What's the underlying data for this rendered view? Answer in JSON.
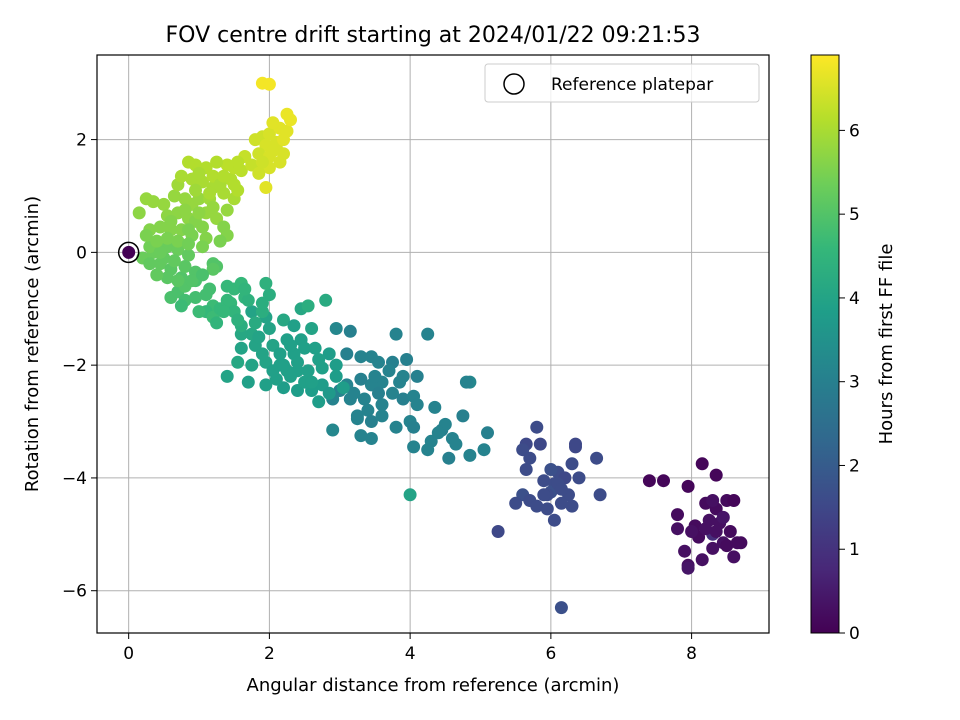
{
  "chart_data": {
    "type": "scatter",
    "title": "FOV centre drift starting at 2024/01/22 09:21:53",
    "xlabel": "Angular distance from reference (arcmin)",
    "ylabel": "Rotation from reference (arcmin)",
    "xlim": [
      -0.45,
      9.1
    ],
    "ylim": [
      -6.75,
      3.5
    ],
    "xticks": [
      0,
      2,
      4,
      6,
      8
    ],
    "yticks": [
      -6,
      -4,
      -2,
      0,
      2
    ],
    "grid": true,
    "legend": {
      "position": "top-right",
      "label": "Reference platepar"
    },
    "reference_point": {
      "x": 0,
      "y": 0
    },
    "colorbar": {
      "label": "Hours from first FF file",
      "min": 0,
      "max": 6.9,
      "ticks": [
        0,
        1,
        2,
        3,
        4,
        5,
        6
      ],
      "colormap": "viridis",
      "stops": [
        "#440154",
        "#482878",
        "#3e4989",
        "#31688e",
        "#26828e",
        "#1f9e89",
        "#35b779",
        "#6ece58",
        "#b5de2b",
        "#fde725"
      ]
    },
    "points": [
      [
        0,
        0,
        0
      ],
      [
        7.4,
        -4.05,
        0.1
      ],
      [
        7.6,
        -4.05,
        0.1
      ],
      [
        7.8,
        -4.65,
        0.2
      ],
      [
        7.95,
        -4.15,
        0.1
      ],
      [
        8.15,
        -3.75,
        0.1
      ],
      [
        8.35,
        -3.95,
        0.1
      ],
      [
        8.05,
        -4.85,
        0.2
      ],
      [
        8.25,
        -4.75,
        0.3
      ],
      [
        8.35,
        -4.55,
        0.2
      ],
      [
        8.5,
        -4.4,
        0.2
      ],
      [
        8.6,
        -4.4,
        0.1
      ],
      [
        8.2,
        -4.45,
        0.2
      ],
      [
        8.4,
        -4.8,
        0.3
      ],
      [
        8.55,
        -4.95,
        0.2
      ],
      [
        8.45,
        -5.15,
        0.3
      ],
      [
        8.7,
        -5.15,
        0.2
      ],
      [
        8.3,
        -5.25,
        0.3
      ],
      [
        8.1,
        -5.05,
        0.2
      ],
      [
        7.9,
        -5.3,
        0.3
      ],
      [
        7.95,
        -5.55,
        0.3
      ],
      [
        7.95,
        -5.6,
        0.4
      ],
      [
        8.15,
        -5.45,
        0.3
      ],
      [
        8.6,
        -5.4,
        0.3
      ],
      [
        8.5,
        -5.2,
        0.2
      ],
      [
        8.0,
        -4.95,
        0.3
      ],
      [
        7.8,
        -4.9,
        0.3
      ],
      [
        8.3,
        -5.0,
        0.9
      ],
      [
        8.45,
        -4.7,
        0.4
      ],
      [
        8.2,
        -4.9,
        0.3
      ],
      [
        8.65,
        -5.15,
        0.2
      ],
      [
        8.35,
        -4.95,
        0.3
      ],
      [
        8.3,
        -4.4,
        0.3
      ],
      [
        5.65,
        -3.4,
        1.5
      ],
      [
        5.8,
        -3.1,
        1.6
      ],
      [
        5.85,
        -3.4,
        1.5
      ],
      [
        5.6,
        -3.5,
        1.6
      ],
      [
        6.35,
        -3.45,
        1.5
      ],
      [
        6.35,
        -3.4,
        1.5
      ],
      [
        6.65,
        -3.65,
        1.6
      ],
      [
        6.3,
        -3.75,
        1.6
      ],
      [
        6.1,
        -3.9,
        1.6
      ],
      [
        6.0,
        -3.85,
        1.7
      ],
      [
        5.65,
        -3.85,
        1.6
      ],
      [
        5.7,
        -3.65,
        1.6
      ],
      [
        5.9,
        -4.05,
        1.6
      ],
      [
        6.05,
        -4.1,
        1.6
      ],
      [
        6.2,
        -4.0,
        1.5
      ],
      [
        6.4,
        -4.0,
        1.6
      ],
      [
        6.25,
        -4.3,
        1.6
      ],
      [
        6.0,
        -4.25,
        1.7
      ],
      [
        5.95,
        -4.3,
        1.6
      ],
      [
        5.6,
        -4.3,
        1.7
      ],
      [
        5.7,
        -4.4,
        1.6
      ],
      [
        5.5,
        -4.45,
        1.6
      ],
      [
        5.8,
        -4.5,
        1.6
      ],
      [
        5.95,
        -4.55,
        1.6
      ],
      [
        6.3,
        -4.5,
        1.6
      ],
      [
        6.7,
        -4.3,
        1.6
      ],
      [
        6.15,
        -4.45,
        1.6
      ],
      [
        6.05,
        -4.75,
        1.6
      ],
      [
        5.25,
        -4.95,
        1.5
      ],
      [
        6.15,
        -6.3,
        1.7
      ],
      [
        6.1,
        -4.1,
        1.6
      ],
      [
        6.15,
        -4.2,
        1.6
      ],
      [
        5.9,
        -4.3,
        1.6
      ],
      [
        2.95,
        -1.35,
        3.2
      ],
      [
        3.15,
        -1.4,
        3.0
      ],
      [
        3.1,
        -1.8,
        3.0
      ],
      [
        3.3,
        -1.85,
        3.1
      ],
      [
        3.45,
        -1.85,
        3.1
      ],
      [
        3.55,
        -1.95,
        3.1
      ],
      [
        3.75,
        -1.95,
        3.0
      ],
      [
        3.95,
        -1.9,
        3.0
      ],
      [
        3.8,
        -1.45,
        3.1
      ],
      [
        4.25,
        -1.45,
        3.1
      ],
      [
        4.1,
        -2.2,
        3.0
      ],
      [
        3.9,
        -2.2,
        3.1
      ],
      [
        3.6,
        -2.3,
        3.1
      ],
      [
        3.45,
        -2.35,
        3.1
      ],
      [
        3.3,
        -2.25,
        3.0
      ],
      [
        3.1,
        -2.35,
        3.1
      ],
      [
        3.0,
        -2.45,
        3.1
      ],
      [
        2.9,
        -2.6,
        3.1
      ],
      [
        3.15,
        -2.6,
        3.1
      ],
      [
        3.35,
        -2.6,
        3.1
      ],
      [
        3.55,
        -2.5,
        3.0
      ],
      [
        3.75,
        -2.5,
        3.1
      ],
      [
        3.9,
        -2.6,
        3.0
      ],
      [
        4.05,
        -2.55,
        3.1
      ],
      [
        4.1,
        -2.7,
        3.1
      ],
      [
        3.6,
        -2.7,
        3.1
      ],
      [
        3.4,
        -2.8,
        3.1
      ],
      [
        3.25,
        -2.95,
        3.1
      ],
      [
        3.45,
        -3.0,
        3.0
      ],
      [
        3.6,
        -2.9,
        3.1
      ],
      [
        3.8,
        -3.1,
        3.1
      ],
      [
        4.0,
        -3.0,
        3.1
      ],
      [
        4.05,
        -3.1,
        3.0
      ],
      [
        4.35,
        -2.75,
        3.1
      ],
      [
        4.45,
        -3.15,
        3.0
      ],
      [
        4.3,
        -3.35,
        3.1
      ],
      [
        4.6,
        -3.3,
        3.1
      ],
      [
        4.75,
        -2.9,
        3.0
      ],
      [
        4.85,
        -2.3,
        3.2
      ],
      [
        4.8,
        -2.3,
        3.1
      ],
      [
        4.05,
        -3.45,
        3.1
      ],
      [
        4.25,
        -3.5,
        3.1
      ],
      [
        4.55,
        -3.65,
        3.0
      ],
      [
        4.85,
        -3.6,
        3.1
      ],
      [
        5.05,
        -3.5,
        3.1
      ],
      [
        5.1,
        -3.2,
        3.0
      ],
      [
        3.45,
        -3.3,
        3.1
      ],
      [
        3.3,
        -3.25,
        3.1
      ],
      [
        3.25,
        -2.9,
        3.1
      ],
      [
        2.9,
        -3.15,
        3.2
      ],
      [
        3.5,
        -2.2,
        3.1
      ],
      [
        3.7,
        -2.1,
        3.1
      ],
      [
        4.5,
        -3.05,
        3.1
      ],
      [
        4.4,
        -3.2,
        3.1
      ],
      [
        4.65,
        -3.4,
        3.1
      ],
      [
        3.85,
        -2.3,
        3.1
      ],
      [
        3.2,
        -2.5,
        3.1
      ],
      [
        4.0,
        -4.3,
        4.0
      ],
      [
        1.75,
        -1.05,
        4.0
      ],
      [
        1.95,
        -1.15,
        4.0
      ],
      [
        2.2,
        -1.2,
        4.1
      ],
      [
        2.35,
        -1.3,
        3.9
      ],
      [
        2.6,
        -1.35,
        4.0
      ],
      [
        2.45,
        -1.0,
        4.1
      ],
      [
        2.8,
        -0.85,
        4.2
      ],
      [
        2.55,
        -0.95,
        4.3
      ],
      [
        2.0,
        -0.75,
        4.3
      ],
      [
        1.95,
        -0.55,
        4.4
      ],
      [
        2.0,
        -1.35,
        4.0
      ],
      [
        1.75,
        -1.45,
        4.1
      ],
      [
        1.6,
        -1.45,
        4.1
      ],
      [
        1.8,
        -1.65,
        4.0
      ],
      [
        2.05,
        -1.65,
        4.0
      ],
      [
        2.25,
        -1.55,
        3.9
      ],
      [
        2.45,
        -1.55,
        3.9
      ],
      [
        2.65,
        -1.7,
        3.9
      ],
      [
        2.85,
        -1.8,
        3.8
      ],
      [
        2.95,
        -2.0,
        3.8
      ],
      [
        2.75,
        -2.05,
        3.9
      ],
      [
        2.55,
        -2.1,
        3.9
      ],
      [
        2.4,
        -2.1,
        3.9
      ],
      [
        2.15,
        -2.0,
        3.9
      ],
      [
        1.95,
        -1.95,
        4.0
      ],
      [
        1.75,
        -2.0,
        4.0
      ],
      [
        1.55,
        -1.95,
        4.1
      ],
      [
        1.7,
        -2.3,
        3.9
      ],
      [
        1.95,
        -2.35,
        3.9
      ],
      [
        2.2,
        -2.4,
        3.8
      ],
      [
        2.4,
        -2.45,
        3.8
      ],
      [
        2.6,
        -2.45,
        3.8
      ],
      [
        2.75,
        -2.35,
        3.8
      ],
      [
        2.95,
        -2.2,
        3.8
      ],
      [
        3.05,
        -2.4,
        3.8
      ],
      [
        2.85,
        -2.5,
        3.7
      ],
      [
        2.7,
        -2.65,
        3.8
      ],
      [
        2.5,
        -2.3,
        3.9
      ],
      [
        2.3,
        -2.2,
        3.9
      ],
      [
        2.1,
        -2.25,
        3.9
      ],
      [
        1.4,
        -2.2,
        4.0
      ],
      [
        2.25,
        -2.1,
        3.9
      ],
      [
        2.6,
        -2.3,
        3.9
      ],
      [
        1.9,
        -1.8,
        4.0
      ],
      [
        2.35,
        -1.8,
        3.9
      ],
      [
        2.15,
        -1.8,
        3.9
      ],
      [
        2.05,
        -2.1,
        3.9
      ],
      [
        1.85,
        -1.5,
        4.0
      ],
      [
        2.5,
        -1.7,
        3.9
      ],
      [
        2.7,
        -1.9,
        3.9
      ],
      [
        1.6,
        -1.7,
        4.0
      ],
      [
        2.3,
        -1.65,
        3.9
      ],
      [
        2.2,
        -2.0,
        3.9
      ],
      [
        2.4,
        -1.95,
        3.9
      ],
      [
        0.6,
        -0.8,
        4.9
      ],
      [
        0.7,
        -0.7,
        4.9
      ],
      [
        0.8,
        -0.85,
        4.8
      ],
      [
        0.75,
        -0.95,
        4.7
      ],
      [
        1.1,
        -0.75,
        4.8
      ],
      [
        1.2,
        -0.95,
        4.7
      ],
      [
        1.1,
        -1.05,
        4.6
      ],
      [
        1.2,
        -1.15,
        4.7
      ],
      [
        1.0,
        -1.05,
        4.7
      ],
      [
        1.25,
        -0.25,
        5.0
      ],
      [
        1.2,
        -0.2,
        5.0
      ],
      [
        1.2,
        -0.3,
        5.1
      ],
      [
        0.95,
        -0.5,
        4.9
      ],
      [
        0.75,
        -0.45,
        5.0
      ],
      [
        1.4,
        -0.6,
        4.6
      ],
      [
        1.5,
        -0.65,
        4.6
      ],
      [
        1.6,
        -0.55,
        4.6
      ],
      [
        1.65,
        -0.8,
        4.5
      ],
      [
        1.45,
        -0.9,
        4.6
      ],
      [
        1.5,
        -1.05,
        4.5
      ],
      [
        1.4,
        -0.85,
        4.6
      ],
      [
        1.6,
        -1.3,
        4.3
      ],
      [
        1.8,
        -1.25,
        4.2
      ],
      [
        1.9,
        -1.05,
        4.3
      ],
      [
        1.7,
        -0.85,
        4.4
      ],
      [
        1.9,
        -0.9,
        4.3
      ],
      [
        1.65,
        -0.65,
        4.5
      ],
      [
        1.25,
        -1.25,
        4.5
      ],
      [
        1.3,
        -1.0,
        4.6
      ],
      [
        0.95,
        -0.8,
        4.8
      ],
      [
        1.35,
        -1.05,
        4.6
      ],
      [
        1.55,
        -1.2,
        4.4
      ],
      [
        1.15,
        -0.65,
        4.8
      ],
      [
        0.2,
        -0.1,
        5.3
      ],
      [
        0.35,
        0.0,
        5.3
      ],
      [
        0.4,
        0.15,
        5.4
      ],
      [
        0.55,
        0.1,
        5.3
      ],
      [
        0.7,
        0.05,
        5.3
      ],
      [
        0.85,
        -0.05,
        5.2
      ],
      [
        0.45,
        -0.2,
        5.2
      ],
      [
        0.6,
        -0.3,
        5.1
      ],
      [
        0.8,
        -0.25,
        5.1
      ],
      [
        0.95,
        -0.35,
        5.0
      ],
      [
        0.55,
        -0.45,
        5.1
      ],
      [
        0.4,
        -0.4,
        5.2
      ],
      [
        0.3,
        -0.2,
        5.2
      ],
      [
        0.5,
        -0.1,
        5.2
      ],
      [
        0.65,
        -0.15,
        5.2
      ],
      [
        0.8,
        -0.6,
        5.0
      ],
      [
        0.9,
        -0.5,
        5.0
      ],
      [
        1.05,
        -0.4,
        4.9
      ],
      [
        0.7,
        -0.5,
        5.1
      ],
      [
        0.3,
        0.1,
        5.4
      ],
      [
        0.45,
        0.0,
        5.3
      ],
      [
        0.15,
        0.7,
        5.7
      ],
      [
        0.25,
        0.95,
        5.8
      ],
      [
        0.35,
        0.9,
        5.8
      ],
      [
        0.5,
        0.85,
        5.8
      ],
      [
        0.55,
        0.65,
        5.7
      ],
      [
        0.7,
        0.7,
        5.7
      ],
      [
        0.85,
        0.6,
        5.7
      ],
      [
        0.95,
        0.55,
        5.6
      ],
      [
        1.1,
        0.7,
        5.8
      ],
      [
        1.25,
        0.6,
        5.8
      ],
      [
        1.35,
        0.45,
        5.6
      ],
      [
        1.4,
        0.3,
        5.6
      ],
      [
        1.3,
        0.2,
        5.5
      ],
      [
        1.1,
        0.25,
        5.6
      ],
      [
        0.9,
        0.3,
        5.5
      ],
      [
        0.75,
        0.4,
        5.6
      ],
      [
        0.6,
        0.4,
        5.6
      ],
      [
        0.45,
        0.45,
        5.6
      ],
      [
        0.3,
        0.4,
        5.6
      ],
      [
        0.25,
        0.3,
        5.5
      ],
      [
        0.4,
        0.2,
        5.5
      ],
      [
        0.55,
        0.25,
        5.5
      ],
      [
        0.7,
        0.2,
        5.5
      ],
      [
        0.85,
        0.15,
        5.4
      ],
      [
        1.05,
        0.1,
        5.5
      ],
      [
        0.9,
        0.85,
        5.8
      ],
      [
        1.0,
        0.95,
        5.8
      ],
      [
        1.15,
        0.95,
        5.9
      ],
      [
        0.8,
        0.95,
        5.8
      ],
      [
        0.65,
        1.0,
        5.8
      ],
      [
        0.7,
        1.2,
        5.9
      ],
      [
        0.75,
        1.35,
        6.0
      ],
      [
        0.9,
        1.3,
        6.0
      ],
      [
        1.05,
        1.25,
        6.0
      ],
      [
        1.2,
        1.15,
        6.0
      ],
      [
        1.35,
        1.05,
        6.0
      ],
      [
        1.5,
        0.95,
        6.0
      ],
      [
        1.55,
        1.1,
        6.1
      ],
      [
        1.45,
        1.3,
        6.1
      ],
      [
        1.5,
        1.5,
        6.2
      ],
      [
        1.6,
        1.45,
        6.2
      ],
      [
        1.75,
        1.55,
        6.3
      ],
      [
        1.65,
        1.7,
        6.3
      ],
      [
        1.55,
        1.6,
        6.2
      ],
      [
        1.4,
        1.55,
        6.2
      ],
      [
        1.25,
        1.6,
        6.1
      ],
      [
        1.1,
        1.5,
        6.1
      ],
      [
        0.95,
        1.55,
        6.1
      ],
      [
        0.85,
        1.6,
        6.1
      ],
      [
        1.0,
        1.4,
        6.0
      ],
      [
        1.2,
        1.35,
        6.1
      ],
      [
        1.3,
        1.2,
        6.0
      ],
      [
        1.15,
        1.05,
        6.0
      ],
      [
        1.35,
        1.35,
        6.1
      ],
      [
        1.5,
        1.2,
        6.1
      ],
      [
        0.6,
        0.55,
        5.6
      ],
      [
        1.2,
        0.8,
        5.8
      ],
      [
        1.0,
        0.7,
        5.7
      ],
      [
        0.8,
        0.75,
        5.7
      ],
      [
        0.95,
        1.1,
        5.9
      ],
      [
        1.4,
        0.75,
        5.8
      ],
      [
        1.05,
        0.45,
        5.6
      ],
      [
        0.85,
        0.4,
        5.5
      ],
      [
        1.8,
        2.0,
        6.4
      ],
      [
        1.9,
        2.05,
        6.4
      ],
      [
        2.0,
        2.1,
        6.5
      ],
      [
        1.95,
        1.9,
        6.5
      ],
      [
        1.85,
        1.75,
        6.4
      ],
      [
        2.0,
        1.7,
        6.5
      ],
      [
        2.1,
        1.95,
        6.5
      ],
      [
        2.15,
        2.2,
        6.6
      ],
      [
        2.05,
        2.3,
        6.6
      ],
      [
        2.1,
        1.85,
        6.5
      ],
      [
        2.2,
        2.0,
        6.6
      ],
      [
        2.25,
        2.15,
        6.6
      ],
      [
        2.15,
        1.6,
        6.5
      ],
      [
        2.0,
        1.5,
        6.5
      ],
      [
        1.85,
        1.4,
        6.4
      ],
      [
        1.95,
        1.15,
        6.6
      ],
      [
        2.25,
        2.45,
        6.7
      ],
      [
        2.3,
        2.35,
        6.7
      ],
      [
        1.9,
        3.0,
        6.8
      ],
      [
        2.0,
        2.98,
        6.8
      ],
      [
        2.05,
        1.8,
        6.5
      ],
      [
        1.9,
        1.6,
        6.4
      ],
      [
        2.2,
        1.75,
        6.5
      ]
    ]
  }
}
